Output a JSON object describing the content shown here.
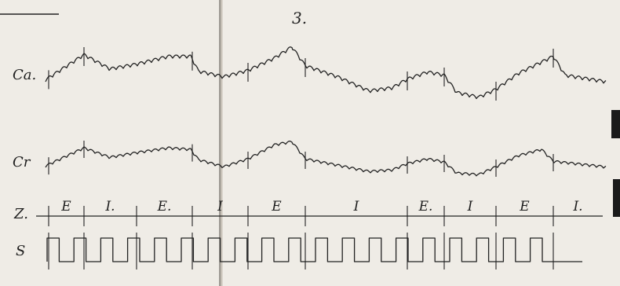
{
  "figure": {
    "number": "3.",
    "rows": {
      "ca": {
        "label": "Ca."
      },
      "cr": {
        "label": "Cr"
      },
      "z": {
        "label": "Z.",
        "phases": [
          "E",
          "I.",
          "E.",
          "I",
          "E",
          "I",
          "E.",
          "I",
          "E",
          "I."
        ]
      },
      "s": {
        "label": "S"
      }
    }
  }
}
